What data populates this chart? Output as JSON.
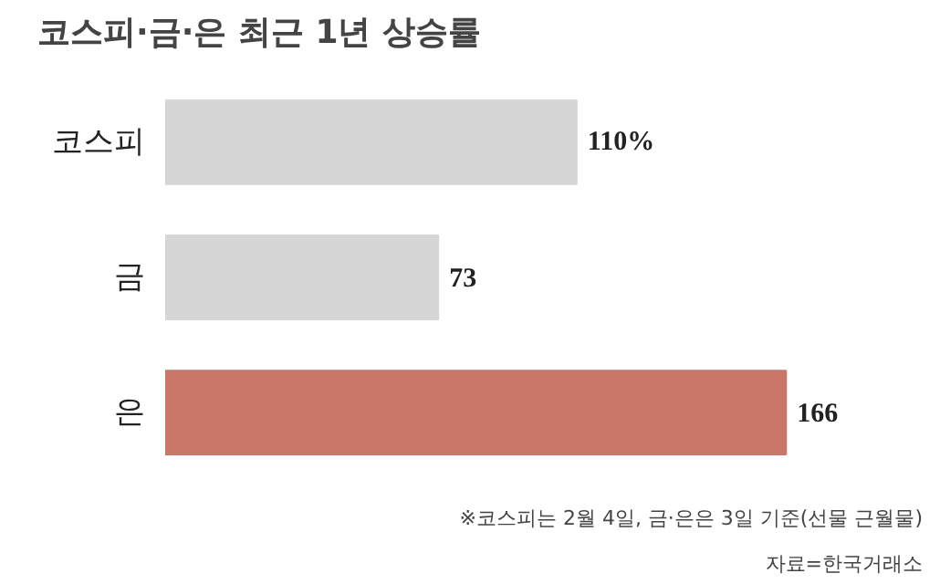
{
  "chart_data": {
    "type": "bar",
    "orientation": "horizontal",
    "title": "코스피·금·은 최근 1년 상승률",
    "categories": [
      "코스피",
      "금",
      "은"
    ],
    "values": [
      110,
      73,
      166
    ],
    "colors": [
      "#d6d6d6",
      "#d6d6d6",
      "#c9776a"
    ],
    "value_labels": [
      "110%",
      "73",
      "166"
    ],
    "annotations": [
      "※코스피는 2월 4일, 금·은은 3일 기준(선물 근월물)",
      "자료=한국거래소"
    ]
  }
}
